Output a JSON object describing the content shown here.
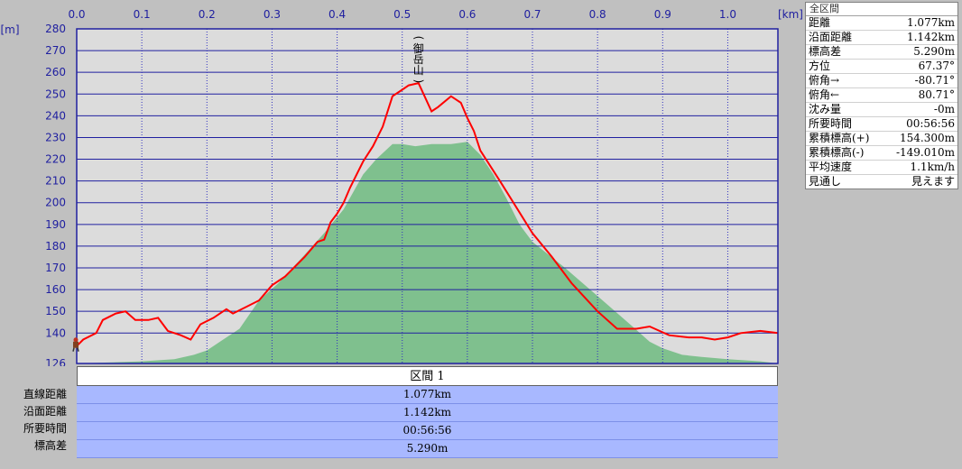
{
  "chart_data": {
    "type": "area",
    "x_unit": "[km]",
    "y_unit": "[m]",
    "xlim": [
      0,
      1.077
    ],
    "ylim": [
      126,
      280
    ],
    "x_ticks": [
      "0.0",
      "0.1",
      "0.2",
      "0.3",
      "0.4",
      "0.5",
      "0.6",
      "0.7",
      "0.8",
      "0.9",
      "1.0"
    ],
    "y_ticks": [
      "280",
      "270",
      "260",
      "250",
      "240",
      "230",
      "220",
      "210",
      "200",
      "190",
      "180",
      "170",
      "160",
      "150",
      "140",
      "126"
    ],
    "peak_label": "(御岳山)",
    "peak_x": 0.525,
    "grid": true,
    "series": [
      {
        "kind": "line",
        "color": "#ff0000",
        "x": [
          0,
          0.01,
          0.03,
          0.04,
          0.06,
          0.075,
          0.09,
          0.11,
          0.125,
          0.14,
          0.16,
          0.175,
          0.19,
          0.21,
          0.225,
          0.23,
          0.24,
          0.26,
          0.28,
          0.3,
          0.32,
          0.35,
          0.37,
          0.38,
          0.39,
          0.4,
          0.41,
          0.42,
          0.43,
          0.44,
          0.455,
          0.47,
          0.485,
          0.5,
          0.51,
          0.525,
          0.545,
          0.555,
          0.575,
          0.59,
          0.6,
          0.61,
          0.62,
          0.65,
          0.7,
          0.73,
          0.76,
          0.8,
          0.83,
          0.86,
          0.88,
          0.91,
          0.94,
          0.96,
          0.98,
          1.0,
          1.02,
          1.05,
          1.077
        ],
        "y": [
          134,
          137,
          140,
          146,
          149,
          150,
          146,
          146,
          147,
          141,
          139,
          137,
          144,
          147,
          150,
          151,
          149,
          152,
          155,
          162,
          166,
          175,
          182,
          183,
          191,
          195,
          200,
          207,
          213,
          219,
          226,
          235,
          249,
          252,
          254,
          255,
          242,
          244,
          249,
          246,
          239,
          233,
          224,
          210,
          186,
          175,
          163,
          150,
          142,
          142,
          143,
          139,
          138,
          138,
          137,
          138,
          140,
          141,
          140
        ]
      },
      {
        "kind": "area",
        "color": "#7fc08e",
        "x": [
          0,
          0.1,
          0.15,
          0.18,
          0.2,
          0.22,
          0.25,
          0.28,
          0.31,
          0.35,
          0.38,
          0.41,
          0.44,
          0.46,
          0.485,
          0.5,
          0.52,
          0.545,
          0.575,
          0.6,
          0.62,
          0.64,
          0.66,
          0.68,
          0.7,
          0.75,
          0.8,
          0.85,
          0.88,
          0.9,
          0.93,
          0.96,
          1.0,
          1.05,
          1.077
        ],
        "y": [
          126,
          127,
          128,
          130,
          132,
          136,
          142,
          155,
          163,
          176,
          186,
          197,
          213,
          220,
          227,
          227,
          226,
          227,
          227,
          228,
          222,
          213,
          202,
          190,
          182,
          170,
          157,
          144,
          136,
          133,
          130,
          129,
          128,
          127,
          126
        ]
      }
    ]
  },
  "summary": {
    "header": "全区間",
    "rows": [
      {
        "label": "距離",
        "value": "1.077km"
      },
      {
        "label": "沿面距離",
        "value": "1.142km"
      },
      {
        "label": "標高差",
        "value": "5.290m"
      },
      {
        "label": "方位",
        "value": "67.37°"
      },
      {
        "label": "俯角→",
        "value": "-80.71°"
      },
      {
        "label": "俯角←",
        "value": "80.71°"
      },
      {
        "label": "沈み量",
        "value": "-0m"
      },
      {
        "label": "所要時間",
        "value": "00:56:56"
      },
      {
        "label": "累積標高(+)",
        "value": "154.300m"
      },
      {
        "label": "累積標高(-)",
        "value": "-149.010m"
      },
      {
        "label": "平均速度",
        "value": "1.1km/h"
      },
      {
        "label": "見通し",
        "value": "見えます"
      }
    ]
  },
  "section_table": {
    "header": "区間 1",
    "rows": [
      {
        "label": "直線距離",
        "value": "1.077km"
      },
      {
        "label": "沿面距離",
        "value": "1.142km"
      },
      {
        "label": "所要時間",
        "value": "00:56:56"
      },
      {
        "label": "標高差",
        "value": "5.290m"
      }
    ]
  },
  "colors": {
    "plot_bg": "#dcdcdc",
    "axis_blue": "#2020a0",
    "grid_v": "#3030c0",
    "profile": "#ff0000",
    "terrain": "#7fc08e"
  }
}
